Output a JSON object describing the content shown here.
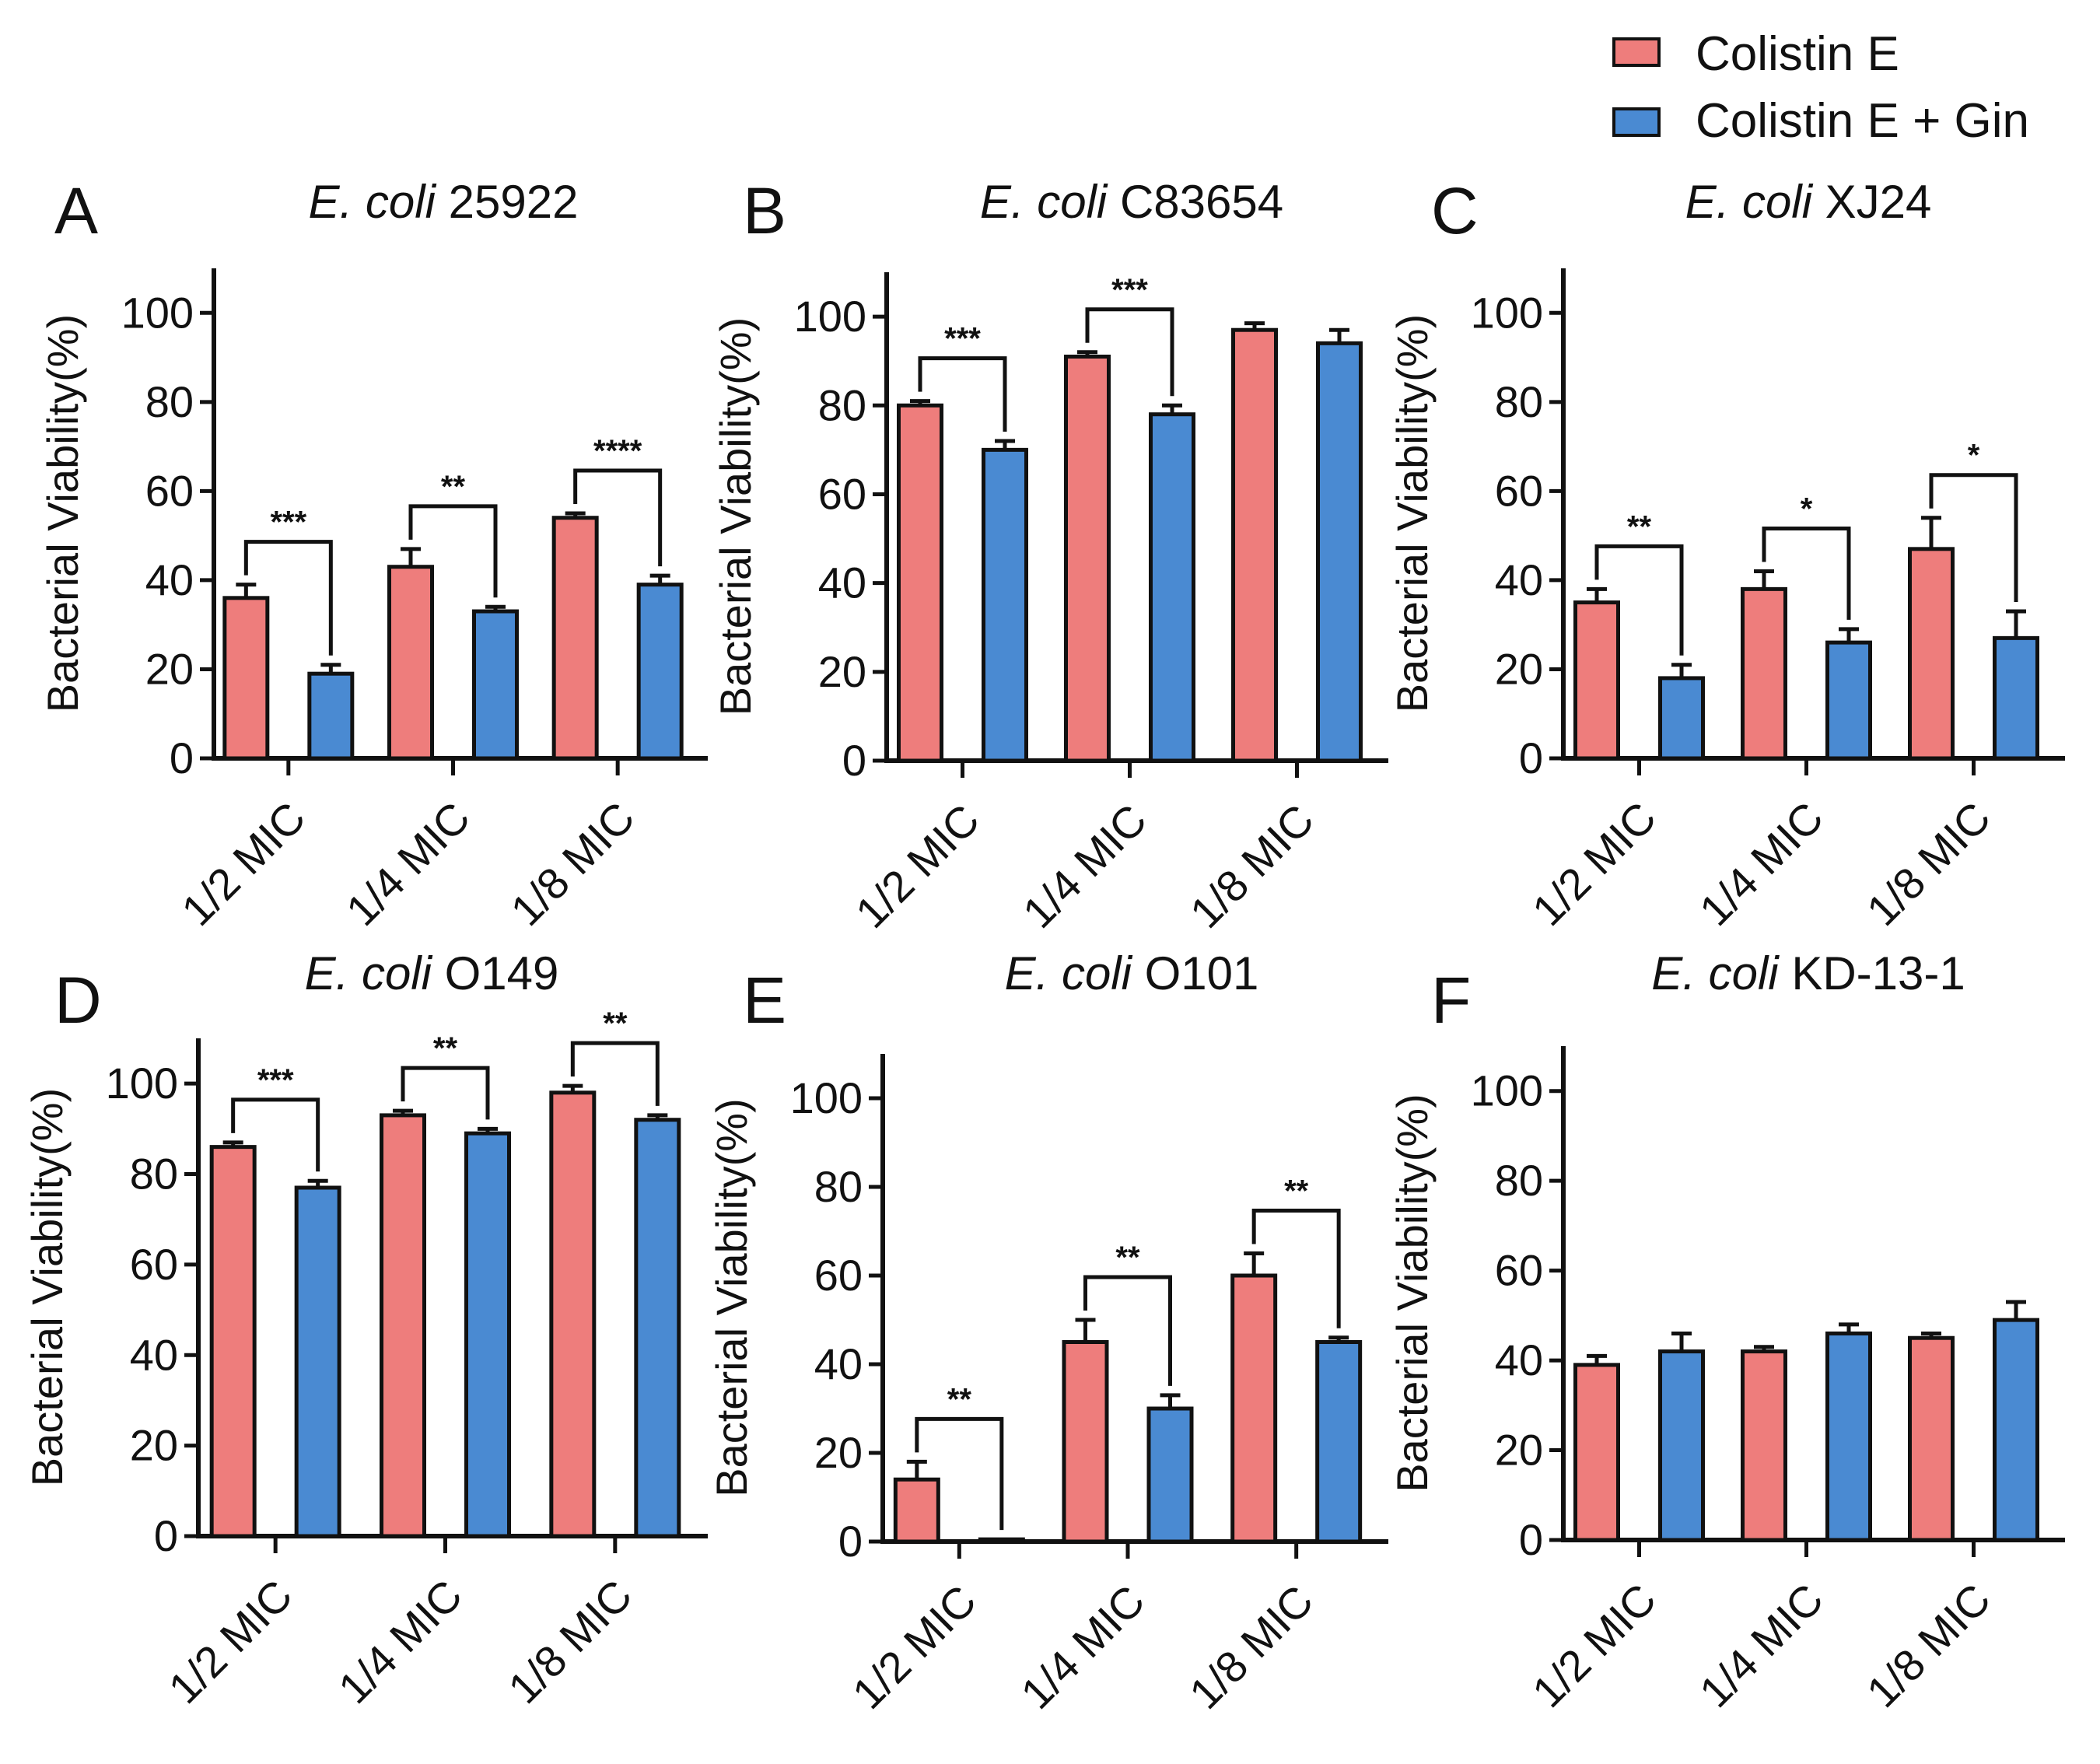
{
  "colors": {
    "colistin": "#ee7d7c",
    "combo": "#4a8ad2",
    "axis": "#111111"
  },
  "legend": [
    {
      "label": "Colistin E",
      "color": "#ee7d7c"
    },
    {
      "label": "Colistin E + Gin",
      "color": "#4a8ad2"
    }
  ],
  "chart_data": [
    {
      "type": "bar",
      "panel": "A",
      "title_italic": "E. coli",
      "title_strain": "25922",
      "ylabel": "Bacterial Viability(%)",
      "ylim": [
        0,
        110
      ],
      "yticks": [
        0,
        20,
        40,
        60,
        80,
        100
      ],
      "categories": [
        "1/2 MIC",
        "1/4 MIC",
        "1/8 MIC"
      ],
      "series": [
        {
          "name": "Colistin E",
          "values": [
            36,
            43,
            54
          ],
          "errors": [
            3,
            4,
            1
          ]
        },
        {
          "name": "Colistin E + Gin",
          "values": [
            19,
            33,
            39
          ],
          "errors": [
            2,
            1,
            2
          ]
        }
      ],
      "significance": [
        "***",
        "**",
        "****"
      ]
    },
    {
      "type": "bar",
      "panel": "B",
      "title_italic": "E. coli",
      "title_strain": "C83654",
      "ylabel": "Bacterial Viability(%)",
      "ylim": [
        0,
        110
      ],
      "yticks": [
        0,
        20,
        40,
        60,
        80,
        100
      ],
      "categories": [
        "1/2 MIC",
        "1/4 MIC",
        "1/8 MIC"
      ],
      "series": [
        {
          "name": "Colistin E",
          "values": [
            80,
            91,
            97
          ],
          "errors": [
            1,
            1,
            1.5
          ]
        },
        {
          "name": "Colistin E + Gin",
          "values": [
            70,
            78,
            94
          ],
          "errors": [
            2,
            2,
            3
          ]
        }
      ],
      "significance": [
        "***",
        "***",
        ""
      ]
    },
    {
      "type": "bar",
      "panel": "C",
      "title_italic": "E. coli",
      "title_strain": "XJ24",
      "ylabel": "Bacterial Viability(%)",
      "ylim": [
        0,
        110
      ],
      "yticks": [
        0,
        20,
        40,
        60,
        80,
        100
      ],
      "categories": [
        "1/2 MIC",
        "1/4 MIC",
        "1/8 MIC"
      ],
      "series": [
        {
          "name": "Colistin E",
          "values": [
            35,
            38,
            47
          ],
          "errors": [
            3,
            4,
            7
          ]
        },
        {
          "name": "Colistin E + Gin",
          "values": [
            18,
            26,
            27
          ],
          "errors": [
            3,
            3,
            6
          ]
        }
      ],
      "significance": [
        "**",
        "*",
        "*"
      ]
    },
    {
      "type": "bar",
      "panel": "D",
      "title_italic": "E. coli",
      "title_strain": "O149",
      "ylabel": "Bacterial Viability(%)",
      "ylim": [
        0,
        110
      ],
      "yticks": [
        0,
        20,
        40,
        60,
        80,
        100
      ],
      "categories": [
        "1/2 MIC",
        "1/4 MIC",
        "1/8 MIC"
      ],
      "series": [
        {
          "name": "Colistin E",
          "values": [
            86,
            93,
            98
          ],
          "errors": [
            1,
            1,
            1.5
          ]
        },
        {
          "name": "Colistin E + Gin",
          "values": [
            77,
            89,
            92
          ],
          "errors": [
            1.5,
            1,
            1
          ]
        }
      ],
      "significance": [
        "***",
        "**",
        "**"
      ]
    },
    {
      "type": "bar",
      "panel": "E",
      "title_italic": "E. coli",
      "title_strain": "O101",
      "ylabel": "Bacterial Viability(%)",
      "ylim": [
        0,
        110
      ],
      "yticks": [
        0,
        20,
        40,
        60,
        80,
        100
      ],
      "categories": [
        "1/2 MIC",
        "1/4 MIC",
        "1/8 MIC"
      ],
      "series": [
        {
          "name": "Colistin E",
          "values": [
            14,
            45,
            60
          ],
          "errors": [
            4,
            5,
            5
          ]
        },
        {
          "name": "Colistin E + Gin",
          "values": [
            0.5,
            30,
            45
          ],
          "errors": [
            0,
            3,
            1
          ]
        }
      ],
      "significance": [
        "**",
        "**",
        "**"
      ]
    },
    {
      "type": "bar",
      "panel": "F",
      "title_italic": "E. coli",
      "title_strain": "KD-13-1",
      "ylabel": "Bacterial Viability(%)",
      "ylim": [
        0,
        110
      ],
      "yticks": [
        0,
        20,
        40,
        60,
        80,
        100
      ],
      "categories": [
        "1/2 MIC",
        "1/4 MIC",
        "1/8 MIC"
      ],
      "series": [
        {
          "name": "Colistin E",
          "values": [
            39,
            42,
            45
          ],
          "errors": [
            2,
            1,
            1
          ]
        },
        {
          "name": "Colistin E + Gin",
          "values": [
            42,
            46,
            49
          ],
          "errors": [
            4,
            2,
            4
          ]
        }
      ],
      "significance": [
        "",
        "",
        ""
      ]
    }
  ]
}
